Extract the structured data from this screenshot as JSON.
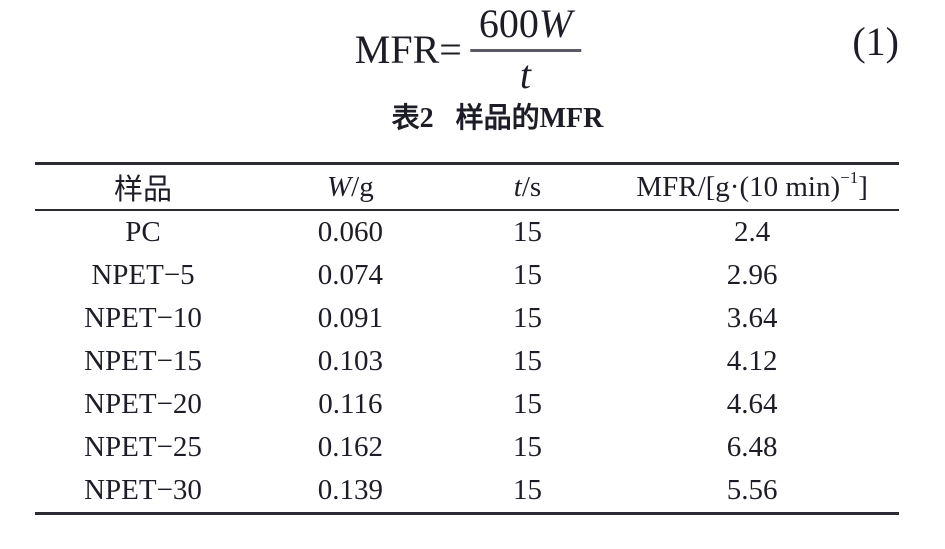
{
  "page": {
    "background": "#ffffff",
    "text_color": "#1d1d27",
    "rule_color": "#2b2b33"
  },
  "equation": {
    "lhs": "MFR=",
    "numerator": "600",
    "numerator_var": "W",
    "denominator_var": "t",
    "number": "(1)"
  },
  "table": {
    "caption": {
      "label": "表2",
      "title": "样品的MFR"
    },
    "columns": [
      {
        "key": "sample",
        "label": "样品"
      },
      {
        "key": "w",
        "label_italic": "W",
        "label_rest": "/g"
      },
      {
        "key": "t",
        "label_italic": "t",
        "label_rest": "/s"
      },
      {
        "key": "mfr",
        "label_prefix": "MFR/[g·(10 min)",
        "label_sup": "−1",
        "label_suffix": "]"
      }
    ],
    "rows": [
      {
        "sample": "PC",
        "w": "0.060",
        "t": "15",
        "mfr": "2.4"
      },
      {
        "sample": "NPET−5",
        "w": "0.074",
        "t": "15",
        "mfr": "2.96"
      },
      {
        "sample": "NPET−10",
        "w": "0.091",
        "t": "15",
        "mfr": "3.64"
      },
      {
        "sample": "NPET−15",
        "w": "0.103",
        "t": "15",
        "mfr": "4.12"
      },
      {
        "sample": "NPET−20",
        "w": "0.116",
        "t": "15",
        "mfr": "4.64"
      },
      {
        "sample": "NPET−25",
        "w": "0.162",
        "t": "15",
        "mfr": "6.48"
      },
      {
        "sample": "NPET−30",
        "w": "0.139",
        "t": "15",
        "mfr": "5.56"
      }
    ]
  }
}
